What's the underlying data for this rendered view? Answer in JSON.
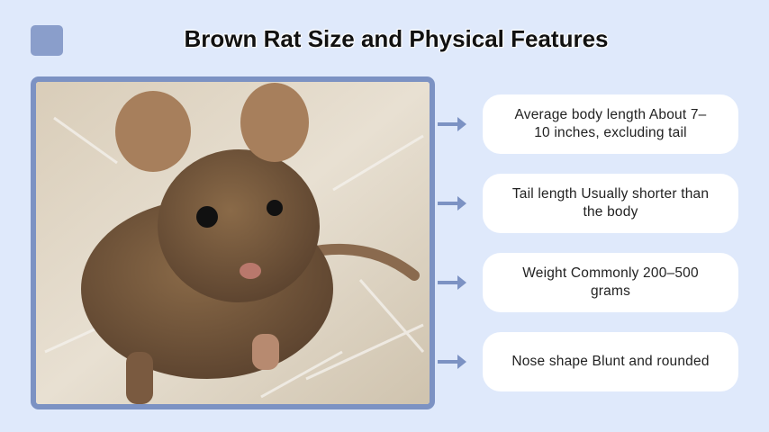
{
  "header": {
    "title": "Brown Rat Size and Physical Features"
  },
  "cards": [
    {
      "text": "Average body length About 7–10 inches, excluding tail"
    },
    {
      "text": "Tail length Usually shorter than the body"
    },
    {
      "text": "Weight Commonly 200–500 grams"
    },
    {
      "text": "Nose shape Blunt and rounded"
    }
  ]
}
